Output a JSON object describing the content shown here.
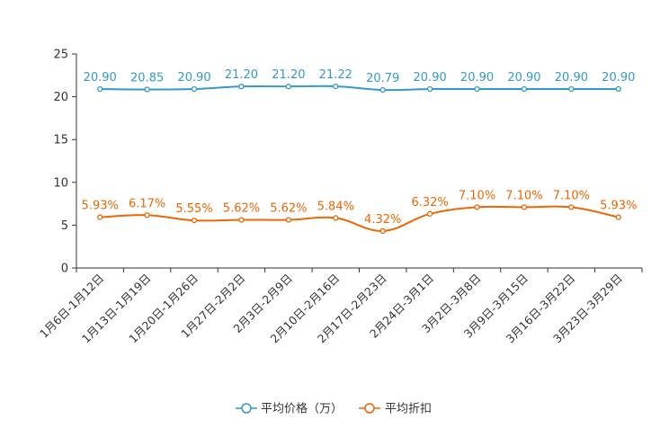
{
  "chart_data": {
    "type": "line",
    "title": "",
    "xlabel": "",
    "ylabel": "",
    "ylim": [
      0,
      25
    ],
    "yticks": [
      0,
      5,
      10,
      15,
      20,
      25
    ],
    "grid": false,
    "legend_position": "bottom-center",
    "categories": [
      "1月6日-1月12日",
      "1月13日-1月19日",
      "1月20日-1月26日",
      "1月27日-2月2日",
      "2月3日-2月9日",
      "2月10日-2月16日",
      "2月17日-2月23日",
      "2月24日-3月1日",
      "3月2日-3月8日",
      "3月9日-3月15日",
      "3月16日-3月22日",
      "3月23日-3月29日"
    ],
    "series": [
      {
        "name": "平均价格（万）",
        "color": "#3399cc",
        "values": [
          20.9,
          20.85,
          20.9,
          21.2,
          21.2,
          21.22,
          20.79,
          20.9,
          20.9,
          20.9,
          20.9,
          20.9
        ],
        "labels": [
          "20.90",
          "20.85",
          "20.90",
          "21.20",
          "21.20",
          "21.22",
          "20.79",
          "20.90",
          "20.90",
          "20.90",
          "20.90",
          "20.90"
        ]
      },
      {
        "name": "平均折扣",
        "color": "#ee6600",
        "values": [
          5.93,
          6.17,
          5.55,
          5.62,
          5.62,
          5.84,
          4.32,
          6.32,
          7.1,
          7.1,
          7.1,
          5.93
        ],
        "labels": [
          "5.93%",
          "6.17%",
          "5.55%",
          "5.62%",
          "5.62%",
          "5.84%",
          "4.32%",
          "6.32%",
          "7.10%",
          "7.10%",
          "7.10%",
          "5.93%"
        ]
      }
    ]
  }
}
